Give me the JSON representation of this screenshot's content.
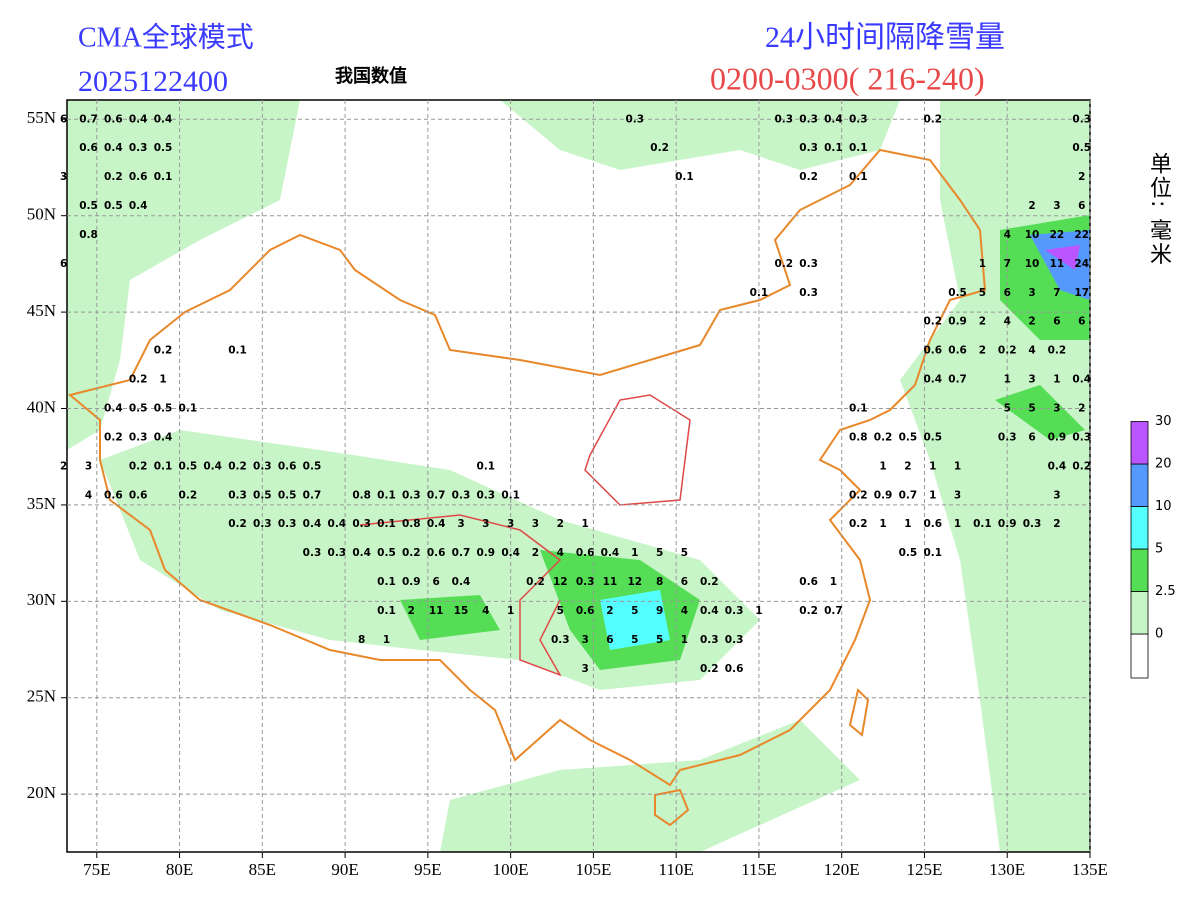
{
  "header": {
    "model": "CMA全球模式",
    "run": "2025122400",
    "region": "我国数值",
    "product": "24小时间隔降雪量",
    "period": "0200-0300( 216-240)",
    "unit": "单位: 毫米"
  },
  "map": {
    "xlim": [
      73.2,
      135
    ],
    "ylim": [
      17,
      56
    ],
    "xticks": [
      {
        "value": 75,
        "label": "75E"
      },
      {
        "value": 80,
        "label": "80E"
      },
      {
        "value": 85,
        "label": "85E"
      },
      {
        "value": 90,
        "label": "90E"
      },
      {
        "value": 95,
        "label": "95E"
      },
      {
        "value": 100,
        "label": "100E"
      },
      {
        "value": 105,
        "label": "105E"
      },
      {
        "value": 110,
        "label": "110E"
      },
      {
        "value": 115,
        "label": "115E"
      },
      {
        "value": 120,
        "label": "120E"
      },
      {
        "value": 125,
        "label": "125E"
      },
      {
        "value": 130,
        "label": "130E"
      },
      {
        "value": 135,
        "label": "135E"
      }
    ],
    "yticks": [
      {
        "value": 20,
        "label": "20N"
      },
      {
        "value": 25,
        "label": "25N"
      },
      {
        "value": 30,
        "label": "30N"
      },
      {
        "value": 35,
        "label": "35N"
      },
      {
        "value": 40,
        "label": "40N"
      },
      {
        "value": 45,
        "label": "45N"
      },
      {
        "value": 50,
        "label": "50N"
      },
      {
        "value": 55,
        "label": "55N"
      }
    ],
    "grid": true,
    "stations": [
      {
        "lat": 55,
        "lon": [
          73,
          74.5,
          76,
          77.5,
          79,
          107.5,
          116.5,
          118,
          119.5,
          121,
          125.5,
          134.5
        ],
        "values": [
          6,
          0.7,
          0.6,
          0.4,
          0.4,
          0.3,
          0.3,
          0.3,
          0.4,
          0.3,
          0.2,
          0.3
        ]
      },
      {
        "lat": 53.5,
        "lon": [
          74.5,
          76,
          77.5,
          79,
          109,
          118,
          119.5,
          121,
          134.5
        ],
        "values": [
          0.6,
          0.4,
          0.3,
          0.5,
          0.2,
          0.3,
          0.1,
          0.1,
          0.5
        ]
      },
      {
        "lat": 52,
        "lon": [
          73,
          76,
          77.5,
          79,
          110.5,
          118,
          121,
          134.5
        ],
        "values": [
          3,
          0.2,
          0.6,
          0.1,
          0.1,
          0.2,
          0.1,
          2
        ]
      },
      {
        "lat": 50.5,
        "lon": [
          74.5,
          76,
          77.5,
          131.5,
          133,
          134.5
        ],
        "values": [
          0.5,
          0.5,
          0.4,
          2,
          3,
          6
        ]
      },
      {
        "lat": 49,
        "lon": [
          74.5,
          130,
          131.5,
          133,
          134.5
        ],
        "values": [
          0.8,
          4,
          10,
          22,
          22
        ]
      },
      {
        "lat": 47.5,
        "lon": [
          73,
          116.5,
          118,
          128.5,
          130,
          131.5,
          133,
          134.5
        ],
        "values": [
          6,
          0.2,
          0.3,
          1,
          7,
          10,
          11,
          24
        ]
      },
      {
        "lat": 46,
        "lon": [
          115,
          118,
          127,
          128.5,
          130,
          131.5,
          133,
          134.5
        ],
        "values": [
          0.1,
          0.3,
          0.5,
          5,
          6,
          3,
          7,
          17
        ]
      },
      {
        "lat": 44.5,
        "lon": [
          125.5,
          127,
          128.5,
          130,
          131.5,
          133,
          134.5
        ],
        "values": [
          0.2,
          0.9,
          2,
          4,
          2,
          6,
          6
        ]
      },
      {
        "lat": 43,
        "lon": [
          79,
          83.5,
          125.5,
          127,
          128.5,
          130,
          131.5,
          133
        ],
        "values": [
          0.2,
          0.1,
          0.6,
          0.6,
          2,
          0.2,
          4,
          0.2
        ]
      },
      {
        "lat": 41.5,
        "lon": [
          77.5,
          79,
          125.5,
          127,
          130,
          131.5,
          133,
          134.5
        ],
        "values": [
          0.2,
          1,
          0.4,
          0.7,
          1,
          3,
          1,
          0.4
        ]
      },
      {
        "lat": 40,
        "lon": [
          76,
          77.5,
          79,
          80.5,
          121,
          130,
          131.5,
          133,
          134.5
        ],
        "values": [
          0.4,
          0.5,
          0.5,
          0.1,
          0.1,
          5,
          5,
          3,
          2
        ]
      },
      {
        "lat": 38.5,
        "lon": [
          76,
          77.5,
          79,
          121,
          122.5,
          124,
          125.5,
          130,
          131.5,
          133,
          134.5
        ],
        "values": [
          0.2,
          0.3,
          0.4,
          0.8,
          0.2,
          0.5,
          0.5,
          0.3,
          6,
          0.9,
          0.3
        ]
      },
      {
        "lat": 37,
        "lon": [
          73,
          74.5,
          77.5,
          79,
          80.5,
          82,
          83.5,
          85,
          86.5,
          88,
          98.5,
          122.5,
          124,
          125.5,
          127,
          133,
          134.5
        ],
        "values": [
          2,
          3,
          0.2,
          0.1,
          0.5,
          0.4,
          0.2,
          0.3,
          0.6,
          0.5,
          0.1,
          1,
          2,
          1,
          1,
          0.4,
          0.2
        ]
      },
      {
        "lat": 35.5,
        "lon": [
          74.5,
          76,
          77.5,
          80.5,
          83.5,
          85,
          86.5,
          88,
          91,
          92.5,
          94,
          95.5,
          97,
          98.5,
          100,
          121,
          122.5,
          124,
          125.5,
          127,
          133
        ],
        "values": [
          4,
          0.6,
          0.6,
          0.2,
          0.3,
          0.5,
          0.5,
          0.7,
          0.8,
          0.1,
          0.3,
          0.7,
          0.3,
          0.3,
          0.1,
          0.2,
          0.9,
          0.7,
          1,
          3,
          3
        ]
      },
      {
        "lat": 34,
        "lon": [
          83.5,
          85,
          86.5,
          88,
          89.5,
          91,
          92.5,
          94,
          95.5,
          97,
          98.5,
          100,
          101.5,
          103,
          104.5,
          121,
          122.5,
          124,
          125.5,
          127,
          128.5,
          130,
          131.5,
          133
        ],
        "values": [
          0.2,
          0.3,
          0.3,
          0.4,
          0.4,
          0.3,
          0.1,
          0.8,
          0.4,
          3,
          3,
          3,
          3,
          2,
          1,
          0.2,
          1,
          1,
          0.6,
          1,
          0.1,
          0.9,
          0.3,
          2
        ]
      },
      {
        "lat": 32.5,
        "lon": [
          88,
          89.5,
          91,
          92.5,
          94,
          95.5,
          97,
          98.5,
          100,
          101.5,
          103,
          104.5,
          106,
          107.5,
          109,
          110.5,
          124,
          125.5
        ],
        "values": [
          0.3,
          0.3,
          0.4,
          0.5,
          0.2,
          0.6,
          0.7,
          0.9,
          0.4,
          2,
          4,
          0.6,
          0.4,
          1,
          5,
          5,
          0.5,
          0.1
        ]
      },
      {
        "lat": 31,
        "lon": [
          92.5,
          94,
          95.5,
          97,
          101.5,
          103,
          104.5,
          106,
          107.5,
          109,
          110.5,
          112,
          118,
          119.5
        ],
        "values": [
          0.1,
          0.9,
          6,
          0.4,
          0.2,
          12,
          0.3,
          11,
          12,
          8,
          6,
          0.2,
          0.6,
          1
        ]
      },
      {
        "lat": 29.5,
        "lon": [
          92.5,
          94,
          95.5,
          97,
          98.5,
          100,
          103,
          104.5,
          106,
          107.5,
          109,
          110.5,
          112,
          113.5,
          115,
          118,
          119.5
        ],
        "values": [
          0.1,
          2,
          11,
          15,
          4,
          1,
          5,
          0.6,
          2,
          5,
          9,
          4,
          0.4,
          0.3,
          1,
          0.2,
          0.7
        ]
      },
      {
        "lat": 28,
        "lon": [
          91,
          92.5,
          103,
          104.5,
          106,
          107.5,
          109,
          110.5,
          112,
          113.5
        ],
        "values": [
          8,
          1,
          0.3,
          3,
          6,
          5,
          5,
          1,
          0.3,
          0.3
        ]
      },
      {
        "lat": 26.5,
        "lon": [
          104.5,
          112,
          113.5
        ],
        "values": [
          3,
          0.2,
          0.6
        ]
      }
    ]
  },
  "legend": {
    "levels": [
      0,
      2.5,
      5,
      10,
      20,
      30
    ],
    "colors": [
      "#ffffff",
      "#c8f5c8",
      "#55dd55",
      "#55ffff",
      "#5599ff",
      "#bb55ff",
      "#ff5555"
    ]
  }
}
